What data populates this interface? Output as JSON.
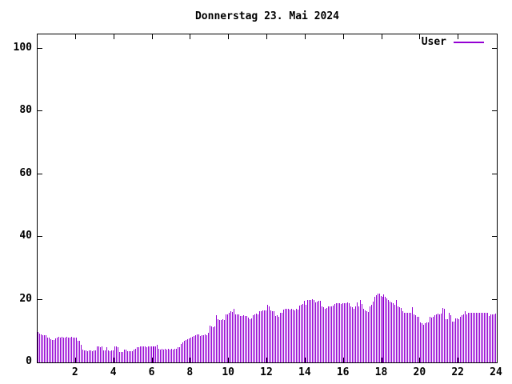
{
  "title": "Donnerstag 23. Mai 2024",
  "legend": {
    "label": "User",
    "position": "top-right"
  },
  "colors": {
    "series": "#9400d3",
    "axis": "#000000",
    "text": "#000000",
    "background": "#ffffff"
  },
  "chart_data": {
    "type": "bar",
    "style": "impulses",
    "title": "Donnerstag 23. Mai 2024",
    "xlabel": "",
    "ylabel": "",
    "xlim": [
      0,
      24
    ],
    "ylim": [
      0,
      100
    ],
    "xticks": [
      2,
      4,
      6,
      8,
      10,
      12,
      14,
      16,
      18,
      20,
      22,
      24
    ],
    "yticks": [
      0,
      20,
      40,
      60,
      80,
      100
    ],
    "grid": false,
    "legend_position": "top-right",
    "x_unit": "hour of day",
    "x_start": 0,
    "x_step_hours": 0.0833333,
    "series": [
      {
        "name": "User",
        "color": "#9400d3",
        "values": [
          9.6,
          9.3,
          9.0,
          8.8,
          8.8,
          8.6,
          7.9,
          7.9,
          7.3,
          7.2,
          7.1,
          7.7,
          8.0,
          8.2,
          7.9,
          8.1,
          7.8,
          8.0,
          8.2,
          7.9,
          8.0,
          8.1,
          7.8,
          8.0,
          7.8,
          7.0,
          6.9,
          5.6,
          4.2,
          3.9,
          3.8,
          3.7,
          3.9,
          3.8,
          3.7,
          3.8,
          3.9,
          5.0,
          5.2,
          4.9,
          5.1,
          3.8,
          3.9,
          4.8,
          3.8,
          3.7,
          3.9,
          3.8,
          5.2,
          5.0,
          4.9,
          3.3,
          3.2,
          3.4,
          4.2,
          4.1,
          3.6,
          3.5,
          3.5,
          3.6,
          4.2,
          4.3,
          4.8,
          4.9,
          5.0,
          5.0,
          5.1,
          5.0,
          4.9,
          5.0,
          5.1,
          5.0,
          5.0,
          5.1,
          5.0,
          5.6,
          4.3,
          4.2,
          4.3,
          4.2,
          4.3,
          4.2,
          4.3,
          4.2,
          4.3,
          4.2,
          4.3,
          4.4,
          4.8,
          4.9,
          5.9,
          6.4,
          6.8,
          7.1,
          7.4,
          7.6,
          8.0,
          8.2,
          8.4,
          8.6,
          9.0,
          8.9,
          8.4,
          8.6,
          8.8,
          9.0,
          8.7,
          9.4,
          11.8,
          11.5,
          11.3,
          11.4,
          15.0,
          13.8,
          13.6,
          13.5,
          13.7,
          13.6,
          15.2,
          15.4,
          15.8,
          16.2,
          16.0,
          17.1,
          15.4,
          15.3,
          15.2,
          14.9,
          14.7,
          15.0,
          14.8,
          14.9,
          14.3,
          13.8,
          14.0,
          15.0,
          15.4,
          15.5,
          15.3,
          16.2,
          16.4,
          16.5,
          16.6,
          16.6,
          18.3,
          17.9,
          16.6,
          16.4,
          16.2,
          14.7,
          15.0,
          14.5,
          15.8,
          15.9,
          16.9,
          17.0,
          17.2,
          17.1,
          16.9,
          17.0,
          16.8,
          16.6,
          17.1,
          16.9,
          18.1,
          18.4,
          18.6,
          19.6,
          18.3,
          19.8,
          19.9,
          20.0,
          20.2,
          19.9,
          19.2,
          19.3,
          19.6,
          19.6,
          17.9,
          17.5,
          17.2,
          17.4,
          17.9,
          17.8,
          17.9,
          18.0,
          18.6,
          18.8,
          18.9,
          18.8,
          18.7,
          18.9,
          18.9,
          18.8,
          19.0,
          18.8,
          17.9,
          17.5,
          17.2,
          17.9,
          19.2,
          17.9,
          19.9,
          18.6,
          17.1,
          16.6,
          16.2,
          16.0,
          17.9,
          18.3,
          19.5,
          20.9,
          21.5,
          22.0,
          21.8,
          21.2,
          20.9,
          21.6,
          20.8,
          20.3,
          19.9,
          19.5,
          19.1,
          18.8,
          18.3,
          19.9,
          17.9,
          17.5,
          17.3,
          16.2,
          15.8,
          15.8,
          15.9,
          15.8,
          15.8,
          17.5,
          15.4,
          15.0,
          14.5,
          14.6,
          12.8,
          12.5,
          12.0,
          12.6,
          12.8,
          12.7,
          14.5,
          14.4,
          14.6,
          15.0,
          15.3,
          15.5,
          15.2,
          15.5,
          17.3,
          17.0,
          13.7,
          13.7,
          15.8,
          15.0,
          13.0,
          13.0,
          14.1,
          14.1,
          13.7,
          14.5,
          15.0,
          15.4,
          16.3,
          15.2,
          15.8,
          15.9,
          15.8,
          15.9,
          15.8,
          15.9,
          15.9,
          15.8,
          15.9,
          15.8,
          15.9,
          15.8,
          15.9,
          14.9,
          15.4,
          15.2,
          15.4,
          15.5
        ]
      }
    ]
  }
}
